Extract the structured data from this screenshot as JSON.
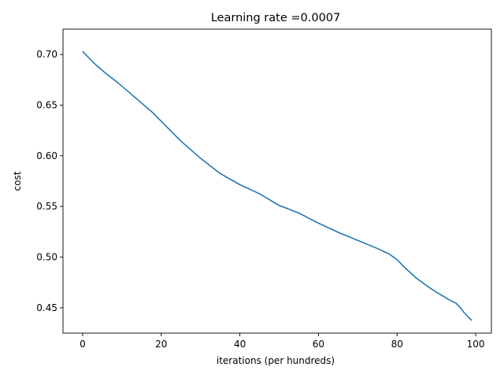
{
  "chart_data": {
    "type": "line",
    "title": "Learning rate =0.0007",
    "xlabel": "iterations (per hundreds)",
    "ylabel": "cost",
    "xlim": [
      -5,
      104
    ],
    "ylim": [
      0.425,
      0.725
    ],
    "xticks": [
      0,
      20,
      40,
      60,
      80,
      100
    ],
    "xtick_labels": [
      "0",
      "20",
      "40",
      "60",
      "80",
      "100"
    ],
    "yticks": [
      0.45,
      0.5,
      0.55,
      0.6,
      0.65,
      0.7
    ],
    "ytick_labels": [
      "0.45",
      "0.50",
      "0.55",
      "0.60",
      "0.65",
      "0.70"
    ],
    "grid": false,
    "series_color": "#1f77b4",
    "series": [
      {
        "x": [
          0,
          3,
          6,
          9,
          12,
          15,
          18,
          20,
          25,
          30,
          35,
          40,
          45,
          50,
          55,
          60,
          65,
          70,
          75,
          78,
          80,
          82,
          85,
          88,
          90,
          93,
          95,
          96,
          97,
          98,
          99
        ],
        "values": [
          0.703,
          0.691,
          0.681,
          0.672,
          0.662,
          0.652,
          0.642,
          0.634,
          0.6145,
          0.5975,
          0.5825,
          0.5715,
          0.5625,
          0.551,
          0.5435,
          0.5335,
          0.5245,
          0.5165,
          0.5085,
          0.503,
          0.4975,
          0.4895,
          0.479,
          0.4705,
          0.4655,
          0.4585,
          0.4545,
          0.4505,
          0.4455,
          0.4415,
          0.4375
        ]
      }
    ]
  }
}
